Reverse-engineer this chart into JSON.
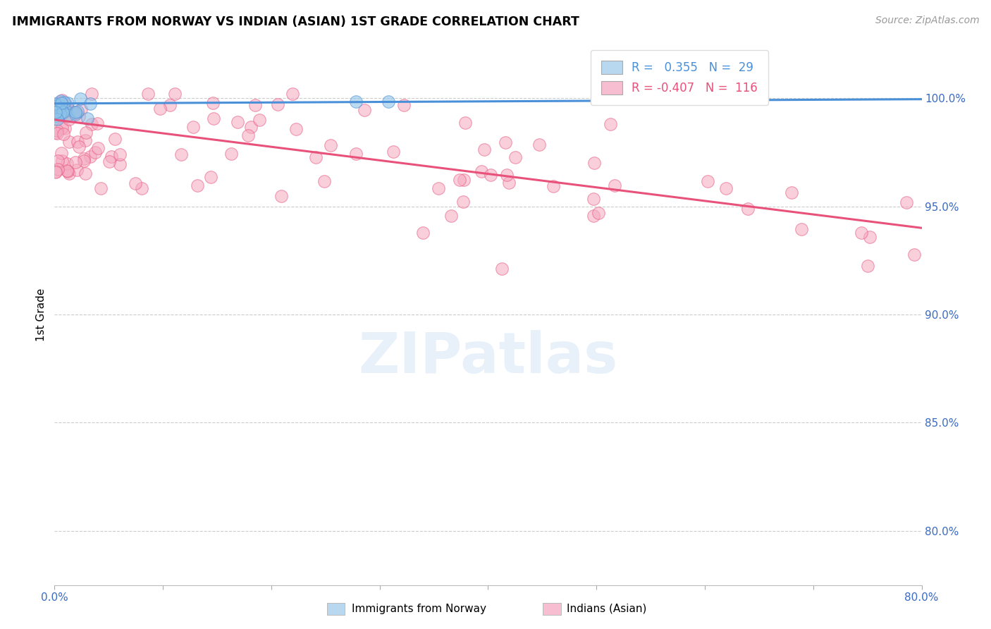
{
  "title": "IMMIGRANTS FROM NORWAY VS INDIAN (ASIAN) 1ST GRADE CORRELATION CHART",
  "source": "Source: ZipAtlas.com",
  "ylabel": "1st Grade",
  "ytick_labels": [
    "100.0%",
    "95.0%",
    "90.0%",
    "85.0%",
    "80.0%"
  ],
  "ytick_values": [
    1.0,
    0.95,
    0.9,
    0.85,
    0.8
  ],
  "xlim": [
    0.0,
    0.8
  ],
  "ylim": [
    0.775,
    1.025
  ],
  "norway_R": 0.355,
  "norway_N": 29,
  "indian_R": -0.407,
  "indian_N": 116,
  "norway_color": "#90c4e8",
  "norway_line_color": "#4a90d9",
  "indian_color": "#f5a8c0",
  "indian_line_color": "#e8527a",
  "legend_box_color_norway": "#b8d8f0",
  "legend_box_color_indian": "#f7bdd0",
  "watermark": "ZIPatlas",
  "norway_line_x0": 0.0,
  "norway_line_y0": 0.9975,
  "norway_line_x1": 0.8,
  "norway_line_y1": 0.9995,
  "indian_line_x0": 0.0,
  "indian_line_y0": 0.99,
  "indian_line_x1": 0.8,
  "indian_line_y1": 0.94
}
